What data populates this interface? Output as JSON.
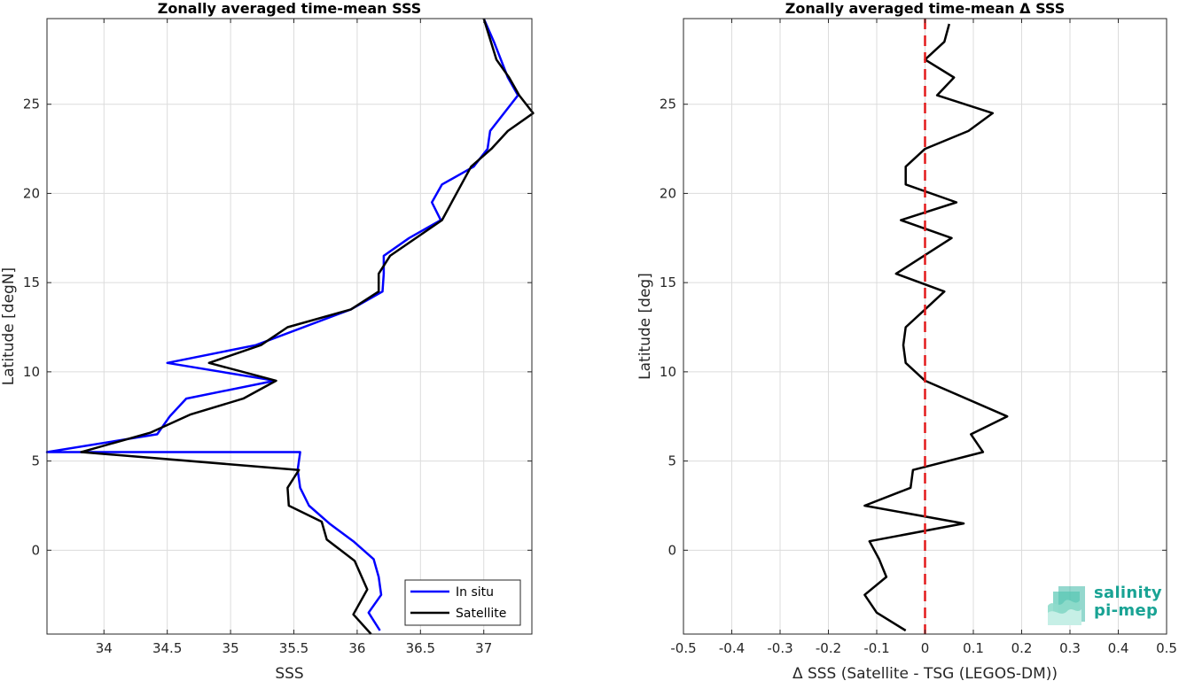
{
  "colors": {
    "in_situ": "#0000ff",
    "satellite": "#000000",
    "zero_line": "#e31a1c",
    "logo": "#19a394"
  },
  "logo": {
    "line1": "salinity",
    "line2": "pi-mep"
  },
  "chart_data": [
    {
      "type": "line",
      "title": "Zonally averaged time-mean SSS",
      "xlabel": "SSS",
      "ylabel": "Latitude [degN]",
      "xlim": [
        33.55,
        37.38
      ],
      "ylim": [
        -4.7,
        29.8
      ],
      "xticks": [
        34,
        34.5,
        35,
        35.5,
        36,
        36.5,
        37
      ],
      "xtick_labels": [
        "34",
        "34.5",
        "35",
        "35.5",
        "36",
        "36.5",
        "37"
      ],
      "yticks": [
        0,
        5,
        10,
        15,
        20,
        25
      ],
      "ytick_labels": [
        "0",
        "5",
        "10",
        "15",
        "20",
        "25"
      ],
      "grid": true,
      "legend_position": "bottom-right",
      "series": [
        {
          "name": "In situ",
          "color_key": "in_situ",
          "x": [
            36.18,
            36.09,
            36.19,
            36.17,
            36.13,
            35.97,
            35.78,
            35.62,
            35.55,
            35.53,
            35.55,
            33.55,
            34.42,
            34.52,
            34.65,
            35.35,
            34.5,
            35.2,
            35.95,
            36.2,
            36.21,
            36.21,
            36.41,
            36.66,
            36.59,
            36.67,
            36.92,
            37.03,
            37.05,
            37.27,
            37.19,
            37.08,
            37.0
          ],
          "y": [
            -4.5,
            -3.5,
            -2.5,
            -1.5,
            -0.5,
            0.5,
            1.5,
            2.5,
            3.5,
            4.5,
            5.5,
            5.5,
            6.5,
            7.5,
            8.5,
            9.5,
            10.5,
            11.5,
            13.5,
            14.5,
            15.5,
            16.5,
            17.5,
            18.5,
            19.5,
            20.5,
            21.5,
            22.5,
            23.5,
            25.5,
            26.5,
            28.5,
            29.8
          ]
        },
        {
          "name": "Satellite",
          "color_key": "satellite",
          "x": [
            36.11,
            35.97,
            36.08,
            35.98,
            35.76,
            35.72,
            35.46,
            35.45,
            35.54,
            33.82,
            34.37,
            34.68,
            35.1,
            35.36,
            34.83,
            35.24,
            35.45,
            35.95,
            36.17,
            36.17,
            36.26,
            36.67,
            36.9,
            37.06,
            37.19,
            37.39,
            37.28,
            37.2,
            37.1,
            37.0
          ],
          "y": [
            -4.7,
            -3.6,
            -2.2,
            -0.6,
            0.6,
            1.6,
            2.5,
            3.5,
            4.5,
            5.5,
            6.6,
            7.6,
            8.5,
            9.5,
            10.5,
            11.5,
            12.5,
            13.5,
            14.5,
            15.5,
            16.5,
            18.5,
            21.5,
            22.5,
            23.5,
            24.5,
            25.5,
            26.5,
            27.5,
            29.8
          ]
        }
      ]
    },
    {
      "type": "line",
      "title": "Zonally averaged time-mean Δ SSS",
      "xlabel": "Δ SSS (Satellite - TSG (LEGOS-DM))",
      "ylabel": "Latitude [deg]",
      "xlim": [
        -0.5,
        0.5
      ],
      "ylim": [
        -4.7,
        29.8
      ],
      "xticks": [
        -0.5,
        -0.4,
        -0.3,
        -0.2,
        -0.1,
        0,
        0.1,
        0.2,
        0.3,
        0.4,
        0.5
      ],
      "xtick_labels": [
        "-0.5",
        "-0.4",
        "-0.3",
        "-0.2",
        "-0.1",
        "0",
        "0.1",
        "0.2",
        "0.3",
        "0.4",
        "0.5"
      ],
      "yticks": [
        0,
        5,
        10,
        15,
        20,
        25
      ],
      "ytick_labels": [
        "0",
        "5",
        "10",
        "15",
        "20",
        "25"
      ],
      "grid": true,
      "reference_line": {
        "x": 0,
        "style": "dashed",
        "color_key": "zero_line"
      },
      "series": [
        {
          "color_key": "satellite",
          "x": [
            -0.04,
            -0.1,
            -0.125,
            -0.08,
            -0.095,
            -0.115,
            0.08,
            -0.125,
            -0.03,
            -0.025,
            0.12,
            0.095,
            0.17,
            0.0,
            -0.04,
            -0.045,
            -0.04,
            0.0,
            0.04,
            -0.06,
            0.055,
            -0.05,
            0.065,
            -0.04,
            -0.04,
            0.0,
            0.09,
            0.14,
            0.025,
            0.06,
            0.0,
            0.04,
            0.05
          ],
          "y": [
            -4.5,
            -3.5,
            -2.5,
            -1.5,
            -0.5,
            0.5,
            1.5,
            2.5,
            3.5,
            4.5,
            5.5,
            6.5,
            7.5,
            9.5,
            10.5,
            11.5,
            12.5,
            13.5,
            14.5,
            15.5,
            17.5,
            18.5,
            19.5,
            20.5,
            21.5,
            22.5,
            23.5,
            24.5,
            25.5,
            26.5,
            27.5,
            28.5,
            29.5
          ]
        }
      ]
    }
  ]
}
